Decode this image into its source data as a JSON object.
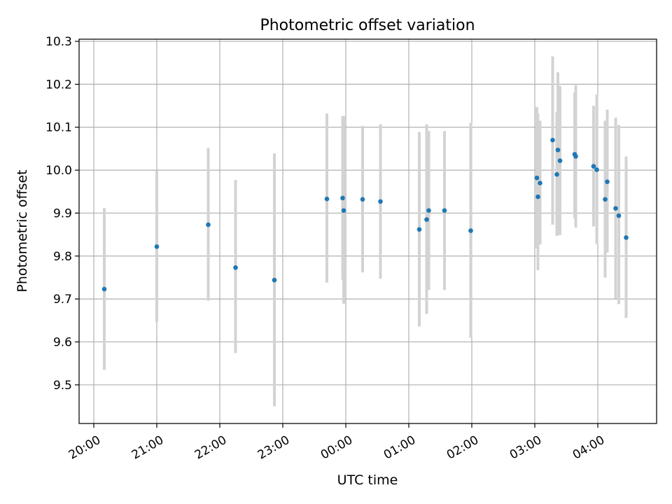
{
  "chart_data": {
    "type": "scatter",
    "title": "Photometric offset variation",
    "xlabel": "UTC time",
    "ylabel": "Photometric offset",
    "xlim": [
      "19:46",
      "04:56"
    ],
    "ylim": [
      9.41,
      10.305
    ],
    "x_ticks": [
      "20:00",
      "21:00",
      "22:00",
      "23:00",
      "00:00",
      "01:00",
      "02:00",
      "03:00",
      "04:00"
    ],
    "y_ticks": [
      9.5,
      9.6,
      9.7,
      9.8,
      9.9,
      10.0,
      10.1,
      10.2,
      10.3
    ],
    "y_tick_labels": [
      "9.5",
      "9.6",
      "9.7",
      "9.8",
      "9.9",
      "10.0",
      "10.1",
      "10.2",
      "10.3"
    ],
    "grid": true,
    "colors": {
      "point": "#1f77b4",
      "errorbar": "#d3d3d3",
      "grid": "#b0b0b0"
    },
    "points": [
      {
        "t": "20:10",
        "y": 9.723,
        "lo": 9.535,
        "hi": 9.912
      },
      {
        "t": "21:00",
        "y": 9.822,
        "lo": 9.646,
        "hi": 9.998
      },
      {
        "t": "21:49",
        "y": 9.873,
        "lo": 9.696,
        "hi": 10.052
      },
      {
        "t": "22:15",
        "y": 9.773,
        "lo": 9.574,
        "hi": 9.977
      },
      {
        "t": "22:52",
        "y": 9.744,
        "lo": 9.45,
        "hi": 10.039
      },
      {
        "t": "23:42",
        "y": 9.933,
        "lo": 9.738,
        "hi": 10.132
      },
      {
        "t": "23:57",
        "y": 9.935,
        "lo": 9.745,
        "hi": 10.126
      },
      {
        "t": "23:58",
        "y": 9.906,
        "lo": 9.689,
        "hi": 10.126
      },
      {
        "t": "00:16",
        "y": 9.932,
        "lo": 9.762,
        "hi": 10.103
      },
      {
        "t": "00:33",
        "y": 9.927,
        "lo": 9.747,
        "hi": 10.107
      },
      {
        "t": "01:10",
        "y": 9.862,
        "lo": 9.636,
        "hi": 10.089
      },
      {
        "t": "01:17",
        "y": 9.885,
        "lo": 9.665,
        "hi": 10.107
      },
      {
        "t": "01:19",
        "y": 9.906,
        "lo": 9.721,
        "hi": 10.091
      },
      {
        "t": "01:34",
        "y": 9.906,
        "lo": 9.721,
        "hi": 10.091
      },
      {
        "t": "01:59",
        "y": 9.859,
        "lo": 9.609,
        "hi": 10.11
      },
      {
        "t": "03:02",
        "y": 9.982,
        "lo": 9.818,
        "hi": 10.147
      },
      {
        "t": "03:03",
        "y": 9.938,
        "lo": 9.767,
        "hi": 10.132
      },
      {
        "t": "03:05",
        "y": 9.97,
        "lo": 9.827,
        "hi": 10.115
      },
      {
        "t": "03:17",
        "y": 10.07,
        "lo": 9.873,
        "hi": 10.265
      },
      {
        "t": "03:21",
        "y": 9.99,
        "lo": 9.847,
        "hi": 10.136
      },
      {
        "t": "03:22",
        "y": 10.047,
        "lo": 9.849,
        "hi": 10.228
      },
      {
        "t": "03:24",
        "y": 10.022,
        "lo": 9.849,
        "hi": 10.196
      },
      {
        "t": "03:38",
        "y": 10.037,
        "lo": 9.888,
        "hi": 10.181
      },
      {
        "t": "03:39",
        "y": 10.032,
        "lo": 9.866,
        "hi": 10.198
      },
      {
        "t": "03:56",
        "y": 10.009,
        "lo": 9.869,
        "hi": 10.15
      },
      {
        "t": "03:59",
        "y": 10.001,
        "lo": 9.828,
        "hi": 10.176
      },
      {
        "t": "04:07",
        "y": 9.932,
        "lo": 9.75,
        "hi": 10.115
      },
      {
        "t": "04:09",
        "y": 9.973,
        "lo": 9.808,
        "hi": 10.141
      },
      {
        "t": "04:17",
        "y": 9.911,
        "lo": 9.701,
        "hi": 10.122
      },
      {
        "t": "04:20",
        "y": 9.894,
        "lo": 9.688,
        "hi": 10.105
      },
      {
        "t": "04:27",
        "y": 9.843,
        "lo": 9.656,
        "hi": 10.032
      }
    ]
  }
}
